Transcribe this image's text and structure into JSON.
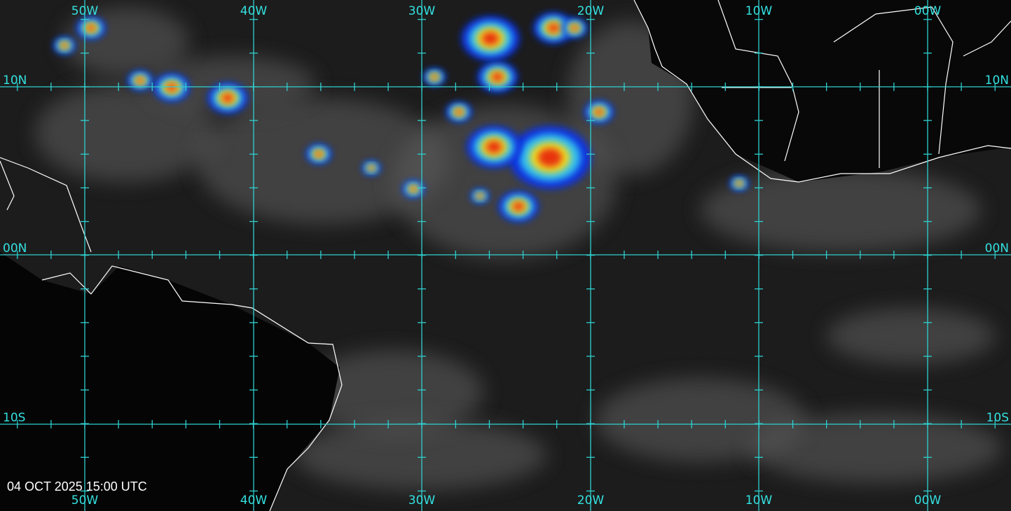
{
  "longitude_labels": [
    "50W",
    "40W",
    "30W",
    "20W",
    "10W",
    "00W"
  ],
  "latitude_labels": [
    "10N",
    "00N",
    "10S"
  ],
  "timestamp": "04 OCT 2025 15:00 UTC"
}
